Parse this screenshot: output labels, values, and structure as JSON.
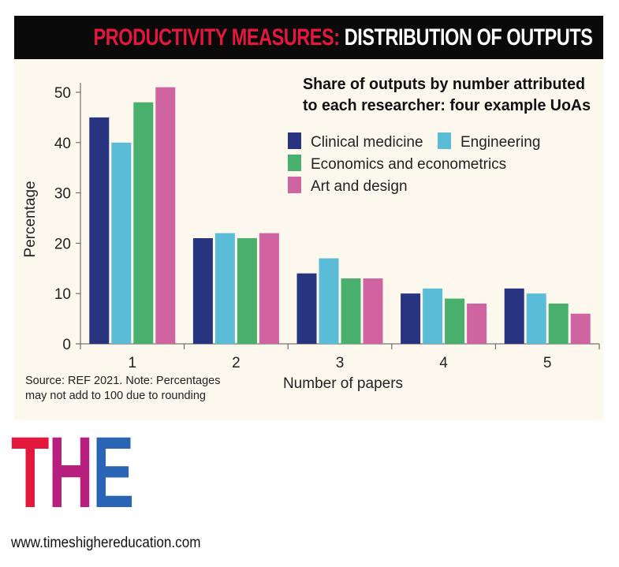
{
  "title": {
    "highlight": "PRODUCTIVITY MEASURES:",
    "rest": "DISTRIBUTION OF OUTPUTS",
    "highlight_color": "#e4183c"
  },
  "chart_data": {
    "type": "bar",
    "title": "Share of outputs by number attributed to each researcher: four example UoAs",
    "title_lines": [
      "Share of outputs by number attributed",
      "to each researcher: four example UoAs"
    ],
    "xlabel": "Number of papers",
    "ylabel": "Percentage",
    "categories": [
      "1",
      "2",
      "3",
      "4",
      "5"
    ],
    "yticks": [
      "0",
      "10",
      "20",
      "30",
      "40",
      "50"
    ],
    "ylim": [
      0,
      52
    ],
    "grid": false,
    "legend_position": "top-right",
    "series": [
      {
        "name": "Clinical medicine",
        "color": "#283480",
        "values": [
          45,
          21,
          14,
          10,
          11
        ]
      },
      {
        "name": "Engineering",
        "color": "#5bbcd8",
        "values": [
          40,
          22,
          17,
          11,
          10
        ]
      },
      {
        "name": "Economics and econometrics",
        "color": "#48b06c",
        "values": [
          48,
          21,
          13,
          9,
          8
        ]
      },
      {
        "name": "Art and design",
        "color": "#d064a0",
        "values": [
          51,
          22,
          13,
          8,
          6
        ]
      }
    ]
  },
  "note_lines": [
    "Source: REF 2021. Note: Percentages",
    "may not add to 100 due to rounding"
  ],
  "logo": {
    "letters": [
      "T",
      "H",
      "E"
    ],
    "colors": [
      "#e4183c",
      "#b8207f",
      "#2a64b4"
    ]
  },
  "url": "www.timeshighereducation.com"
}
